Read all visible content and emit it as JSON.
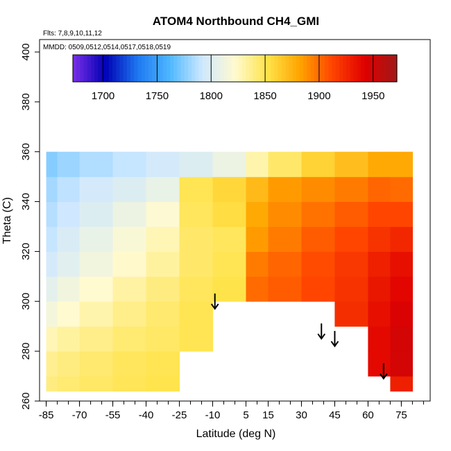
{
  "chart_data": {
    "type": "heatmap",
    "title": "ATOM4 Northbound CH4_GMI",
    "flights_note": "Flts: 7,8,9,10,11,12",
    "dates_note": "MMDD: 0509,0512,0514,0517,0518,0519",
    "xlabel": "Latitude (deg N)",
    "ylabel": "Theta (C)",
    "xlim": [
      -88,
      88
    ],
    "ylim": [
      260,
      405
    ],
    "x_ticks": [
      -85,
      -70,
      -55,
      -40,
      -25,
      -10,
      5,
      15,
      30,
      45,
      60,
      75
    ],
    "y_ticks": [
      260,
      280,
      300,
      320,
      340,
      360,
      380,
      400
    ],
    "colorbar": {
      "range": [
        1672,
        1972
      ],
      "ticks": [
        1700,
        1750,
        1800,
        1850,
        1900,
        1950
      ],
      "colors": [
        "#7b2fe8",
        "#0000b4",
        "#1e78f0",
        "#4fb8ff",
        "#cfe8ff",
        "#fffad0",
        "#ffe34a",
        "#ffa500",
        "#ff4500",
        "#e00000",
        "#a01818"
      ]
    },
    "field": {
      "lat_edges": [
        -85,
        -80,
        -70,
        -55,
        -40,
        -25,
        -10,
        5,
        15,
        30,
        45,
        60,
        70,
        80
      ],
      "theta_edges": [
        264,
        270,
        280,
        290,
        300,
        310,
        320,
        330,
        340,
        350,
        360
      ],
      "values": [
        [
          1840,
          1843,
          1846,
          1849,
          1851,
          null,
          null,
          null,
          null,
          null,
          null,
          null,
          1928
        ],
        [
          1836,
          1840,
          1844,
          1848,
          1850,
          null,
          null,
          null,
          null,
          null,
          null,
          1938,
          1948
        ],
        [
          1828,
          1833,
          1838,
          1843,
          1846,
          1850,
          null,
          null,
          null,
          null,
          null,
          1938,
          1948
        ],
        [
          1815,
          1822,
          1830,
          1838,
          1844,
          1850,
          null,
          null,
          null,
          null,
          1922,
          1935,
          1945
        ],
        [
          1805,
          1813,
          1822,
          1832,
          1840,
          1848,
          1852,
          1900,
          1905,
          1912,
          1920,
          1932,
          1940
        ],
        [
          1795,
          1803,
          1813,
          1823,
          1833,
          1845,
          1850,
          1895,
          1902,
          1910,
          1918,
          1928,
          1935
        ],
        [
          1790,
          1798,
          1808,
          1818,
          1828,
          1845,
          1848,
          1885,
          1895,
          1905,
          1912,
          1920,
          1925
        ],
        [
          1786,
          1792,
          1800,
          1810,
          1820,
          1848,
          1855,
          1880,
          1890,
          1898,
          1905,
          1912,
          1912
        ],
        [
          1782,
          1788,
          1795,
          1800,
          1808,
          1850,
          1858,
          1872,
          1885,
          1890,
          1895,
          1902,
          1900
        ],
        [
          1775,
          1780,
          1785,
          1790,
          1795,
          1800,
          1810,
          1830,
          1845,
          1860,
          1870,
          1880,
          1880
        ]
      ]
    },
    "arrows": [
      {
        "lat": -9,
        "theta": 297
      },
      {
        "lat": 39,
        "theta": 285
      },
      {
        "lat": 45,
        "theta": 282
      },
      {
        "lat": 67,
        "theta": 269
      }
    ]
  }
}
